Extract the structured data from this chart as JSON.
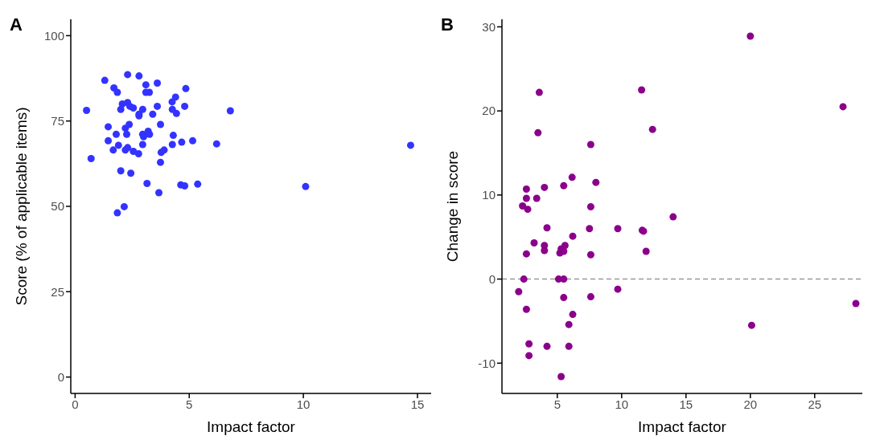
{
  "chart_data": [
    {
      "type": "scatter",
      "title": "A",
      "xlabel": "Impact factor",
      "ylabel": "Score (% of applicable items)",
      "xlim": [
        -0.19,
        15.6
      ],
      "xticks": [
        0,
        5,
        10,
        15
      ],
      "ylim": [
        -4.8,
        104.8
      ],
      "yticks": [
        0,
        25,
        50,
        75,
        100
      ],
      "grid": false,
      "marker": "circle",
      "series": [
        {
          "color": "#3333ff",
          "x": [
            2.3,
            2.8,
            1.3,
            3.1,
            3.6,
            1.7,
            1.85,
            4.85,
            3.1,
            3.25,
            4.4,
            4.25,
            2.07,
            2.3,
            2.0,
            2.4,
            2.55,
            0.5,
            2.96,
            3.6,
            4.8,
            4.26,
            4.44,
            2.8,
            2.8,
            3.4,
            6.2,
            6.8,
            1.45,
            2.37,
            2.2,
            3.74,
            1.8,
            2.26,
            2.96,
            3.2,
            3.26,
            3.0,
            4.3,
            1.45,
            1.9,
            1.67,
            2.3,
            2.2,
            2.55,
            2.78,
            2.96,
            3.9,
            3.77,
            4.26,
            4.67,
            5.15,
            0.7,
            3.74,
            2.0,
            2.44,
            3.15,
            4.63,
            4.8,
            5.37,
            3.67,
            2.15,
            1.85,
            10.1,
            14.7
          ],
          "values": [
            88.6,
            88.2,
            86.9,
            85.6,
            86.1,
            84.7,
            83.4,
            84.5,
            83.4,
            83.4,
            82.0,
            80.6,
            80.0,
            80.4,
            78.4,
            79.3,
            78.8,
            78.1,
            78.4,
            79.3,
            79.3,
            78.4,
            77.2,
            77.0,
            76.5,
            77.0,
            68.3,
            78.0,
            73.3,
            74.0,
            72.9,
            74.0,
            71.1,
            71.1,
            71.1,
            72.0,
            71.1,
            70.4,
            70.8,
            69.2,
            67.9,
            66.5,
            67.2,
            66.5,
            66.1,
            65.4,
            68.1,
            66.5,
            65.8,
            68.1,
            68.8,
            69.2,
            64.0,
            62.9,
            60.4,
            59.7,
            56.7,
            56.3,
            56.0,
            56.5,
            54.0,
            49.9,
            48.1,
            55.8,
            67.9
          ]
        }
      ]
    },
    {
      "type": "scatter",
      "title": "B",
      "xlabel": "Impact factor",
      "ylabel": "Change in score",
      "xlim": [
        0.7,
        28.7
      ],
      "xticks": [
        5,
        10,
        15,
        20,
        25
      ],
      "ylim": [
        -13.6,
        30.9
      ],
      "yticks": [
        -10,
        0,
        10,
        20,
        30
      ],
      "grid": false,
      "marker": "circle",
      "ref_lines": [
        {
          "axis": "y",
          "value": 0,
          "color": "#999999",
          "line_style": "dashed"
        }
      ],
      "series": [
        {
          "color": "#8b008b",
          "x": [
            3.6,
            11.55,
            3.5,
            7.6,
            6.15,
            8.0,
            4.0,
            5.5,
            2.6,
            2.6,
            3.4,
            2.3,
            2.7,
            7.6,
            4.2,
            7.5,
            9.7,
            11.6,
            11.7,
            6.2,
            3.2,
            4.0,
            4.0,
            5.6,
            5.3,
            5.5,
            5.2,
            2.6,
            7.6,
            11.9,
            2.4,
            5.1,
            5.5,
            2.0,
            9.7,
            5.5,
            7.6,
            2.6,
            6.2,
            5.9,
            2.8,
            4.2,
            5.9,
            2.8,
            5.3,
            12.4,
            14.0,
            20.0,
            27.2,
            20.1,
            28.2
          ],
          "values": [
            22.2,
            22.5,
            17.4,
            16.0,
            12.1,
            11.5,
            10.9,
            11.1,
            10.7,
            9.6,
            9.6,
            8.7,
            8.3,
            8.6,
            6.1,
            6.0,
            6.0,
            5.8,
            5.7,
            5.1,
            4.3,
            4.0,
            3.4,
            4.0,
            3.6,
            3.3,
            3.1,
            3.0,
            2.9,
            3.3,
            0,
            0,
            0,
            -1.5,
            -1.2,
            -2.2,
            -2.1,
            -3.6,
            -4.2,
            -5.4,
            -7.7,
            -8.0,
            -8.0,
            -9.1,
            -11.6,
            17.8,
            7.4,
            28.9,
            20.5,
            -5.5,
            -2.9
          ]
        }
      ]
    }
  ]
}
